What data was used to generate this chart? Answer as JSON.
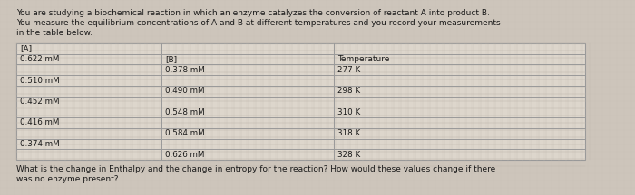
{
  "intro_text_line1": "You are studying a biochemical reaction in which an enzyme catalyzes the conversion of reactant A into product B.",
  "intro_text_line2": "You measure the equilibrium concentrations of A and B at different temperatures and you record your measurements",
  "intro_text_line3": "in the table below.",
  "table_headers": [
    "[A]",
    "[B]",
    "Temperature"
  ],
  "col_A": [
    "0.622 mM",
    "0.510 mM",
    "0.452 mM",
    "0.416 mM",
    "0.374 mM"
  ],
  "col_B": [
    "0.378 mM",
    "0.490 mM",
    "0.548 mM",
    "0.584 mM",
    "0.626 mM"
  ],
  "col_T": [
    "277 K",
    "298 K",
    "310 K",
    "318 K",
    "328 K"
  ],
  "question_line1": "What is the change in Enthalpy and the change in entropy for the reaction? How would these values change if there",
  "question_line2": "was no enzyme present?",
  "bg_color": "#cdc5bb",
  "table_bg_light": "#ddd6cc",
  "table_bg_hatch": "#c8c0b6",
  "table_line_color": "#999999",
  "text_color": "#1a1a1a",
  "header_fontsize": 6.5,
  "body_fontsize": 6.3,
  "intro_fontsize": 6.5,
  "question_fontsize": 6.5,
  "fig_width": 7.0,
  "fig_height": 2.16,
  "dpi": 100
}
